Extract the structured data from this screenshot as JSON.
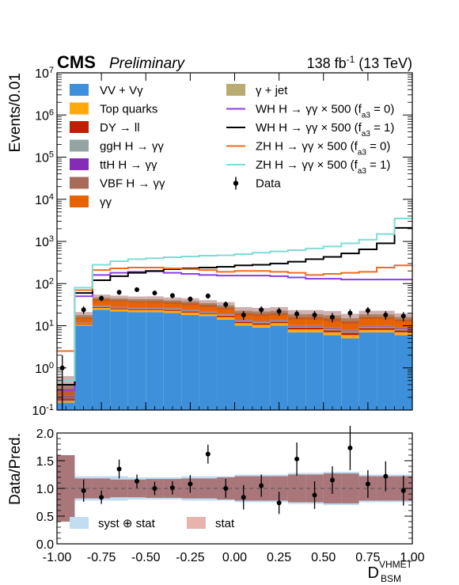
{
  "chart_data": {
    "type": "histogram",
    "header": {
      "experiment": "CMS",
      "status": "Preliminary",
      "lumi_base": "138 fb",
      "lumi_exp": "-1",
      "energy": "(13 TeV)"
    },
    "x_bins": [
      -1.0,
      -0.9,
      -0.8,
      -0.7,
      -0.6,
      -0.5,
      -0.4,
      -0.3,
      -0.2,
      -0.1,
      0.0,
      0.1,
      0.2,
      0.3,
      0.4,
      0.5,
      0.6,
      0.7,
      0.8,
      0.9,
      1.0
    ],
    "xlim": [
      -1.0,
      1.0
    ],
    "xticks": [
      "-1.00",
      "-0.75",
      "-0.50",
      "-0.25",
      "0.00",
      "0.25",
      "0.50",
      "0.75",
      "1.00"
    ],
    "xticks_values": [
      -1.0,
      -0.75,
      -0.5,
      -0.25,
      0.0,
      0.25,
      0.5,
      0.75,
      1.0
    ],
    "xlabel": {
      "base": "D",
      "sup": "VHMET",
      "sub": "BSM"
    },
    "top": {
      "ylabel": "Events/0.01",
      "yscale": "log",
      "ylim": [
        0.1,
        10000000
      ],
      "yticks": [
        {
          "value": 0.1,
          "base": "10",
          "exp": "-1"
        },
        {
          "value": 1,
          "base": "10",
          "exp": "0"
        },
        {
          "value": 10,
          "base": "10",
          "exp": "1"
        },
        {
          "value": 100,
          "base": "10",
          "exp": "2"
        },
        {
          "value": 1000,
          "base": "10",
          "exp": "3"
        },
        {
          "value": 10000,
          "base": "10",
          "exp": "4"
        },
        {
          "value": 100000,
          "base": "10",
          "exp": "5"
        },
        {
          "value": 1000000,
          "base": "10",
          "exp": "6"
        },
        {
          "value": 10000000,
          "base": "10",
          "exp": "7"
        }
      ],
      "stack": [
        {
          "name": "VV + Vγ",
          "color": "#3f90da",
          "values": [
            0.15,
            10,
            24,
            22,
            21,
            21,
            20,
            18,
            17,
            14,
            10,
            9,
            10,
            7,
            7,
            6,
            5,
            7,
            7,
            6
          ]
        },
        {
          "name": "Top quarks",
          "color": "#ffa90e",
          "values": [
            0.02,
            0.8,
            2.5,
            2.5,
            2.5,
            2.5,
            2.5,
            2.5,
            2.0,
            2.0,
            1.5,
            1.5,
            1.5,
            1.2,
            1.2,
            1.0,
            1.0,
            1.0,
            1.0,
            1.0
          ]
        },
        {
          "name": "DY → ll",
          "color": "#bd1f01",
          "values": [
            0.02,
            0.5,
            1.5,
            1.5,
            1.5,
            1.5,
            1.5,
            1.5,
            1.2,
            1.2,
            1.0,
            1.0,
            1.0,
            0.8,
            0.8,
            0.8,
            0.8,
            0.8,
            0.8,
            0.8
          ]
        },
        {
          "name": "ggH H → γγ",
          "color": "#94a4a2",
          "values": [
            0.01,
            0.3,
            1.2,
            1.2,
            1.2,
            1.2,
            1.2,
            1.2,
            1.0,
            1.0,
            0.8,
            0.8,
            0.8,
            0.6,
            0.6,
            0.6,
            0.6,
            0.6,
            0.6,
            0.6
          ]
        },
        {
          "name": "ttH H → γγ",
          "color": "#832db6",
          "values": [
            0.01,
            0.1,
            0.4,
            0.4,
            0.4,
            0.4,
            0.4,
            0.4,
            0.3,
            0.3,
            0.3,
            0.3,
            0.3,
            0.2,
            0.2,
            0.2,
            0.2,
            0.2,
            0.2,
            0.2
          ]
        },
        {
          "name": "VBF H → γγ",
          "color": "#a96b59",
          "values": [
            0.01,
            0.2,
            1.0,
            1.0,
            1.0,
            1.0,
            1.0,
            1.0,
            0.8,
            0.8,
            0.6,
            0.6,
            0.6,
            0.5,
            0.5,
            0.5,
            0.5,
            0.5,
            0.5,
            0.5
          ]
        },
        {
          "name": "γγ",
          "color": "#e76300",
          "values": [
            0.1,
            4.0,
            12,
            12,
            11,
            11,
            10,
            10,
            9,
            8,
            6,
            6,
            6,
            6,
            6,
            6,
            5,
            6,
            6,
            5
          ]
        },
        {
          "name": "γ + jet",
          "color": "#b9ac70",
          "values": [
            0.08,
            2.0,
            4.0,
            4.0,
            4.0,
            4.0,
            3.5,
            3.5,
            3.0,
            3.0,
            2.5,
            2.5,
            2.5,
            2.5,
            2.5,
            2.5,
            2.0,
            2.5,
            2.5,
            2.0
          ]
        }
      ],
      "signals": [
        {
          "name": "WH H → γγ × 500 (f",
          "name_sub": "a3",
          "name_tail": " = 0)",
          "color": "#8a3de6",
          "values": [
            0.3,
            50,
            160,
            180,
            190,
            195,
            180,
            170,
            160,
            155,
            155,
            155,
            150,
            140,
            130,
            130,
            125,
            125,
            125,
            125
          ]
        },
        {
          "name": "WH H → γγ × 500 (f",
          "name_sub": "a3",
          "name_tail": " = 1)",
          "color": "#000000",
          "values": [
            0.4,
            60,
            120,
            150,
            180,
            200,
            220,
            230,
            240,
            250,
            270,
            280,
            300,
            330,
            380,
            430,
            520,
            650,
            900,
            2100
          ]
        },
        {
          "name": "ZH H → γγ × 500 (f",
          "name_sub": "a3",
          "name_tail": " = 0)",
          "color": "#f26b1d",
          "values": [
            2.5,
            70,
            210,
            230,
            240,
            240,
            230,
            220,
            210,
            190,
            200,
            200,
            190,
            180,
            160,
            170,
            180,
            190,
            240,
            270
          ]
        },
        {
          "name": "ZH H → γγ × 500 (f",
          "name_sub": "a3",
          "name_tail": " = 1)",
          "color": "#7fdcd4",
          "values": [
            0.5,
            80,
            280,
            340,
            380,
            400,
            420,
            440,
            460,
            470,
            500,
            540,
            580,
            620,
            680,
            760,
            900,
            1100,
            1500,
            3500
          ]
        }
      ],
      "data": {
        "name": "Data",
        "x": [
          -0.97,
          -0.85,
          -0.75,
          -0.65,
          -0.55,
          -0.45,
          -0.35,
          -0.25,
          -0.15,
          -0.05,
          0.05,
          0.15,
          0.25,
          0.35,
          0.45,
          0.55,
          0.65,
          0.75,
          0.85,
          0.95
        ],
        "values": [
          1.0,
          24,
          45,
          62,
          72,
          60,
          52,
          43,
          51,
          32,
          18,
          24,
          22,
          19,
          18,
          16,
          20,
          23,
          18,
          17
        ]
      }
    },
    "bottom": {
      "ylabel": "Data/Pred.",
      "ylim": [
        0.0,
        2.0
      ],
      "yticks": [
        "0.0",
        "0.5",
        "1.0",
        "1.5",
        "2.0"
      ],
      "yticks_values": [
        0.0,
        0.5,
        1.0,
        1.5,
        2.0
      ],
      "syst_stat_half_width": [
        0.6,
        0.22,
        0.22,
        0.22,
        0.2,
        0.2,
        0.2,
        0.22,
        0.22,
        0.22,
        0.25,
        0.25,
        0.25,
        0.28,
        0.28,
        0.3,
        0.3,
        0.25,
        0.25,
        0.25
      ],
      "stat_half_width": [
        0.6,
        0.18,
        0.18,
        0.16,
        0.16,
        0.17,
        0.17,
        0.18,
        0.18,
        0.2,
        0.22,
        0.22,
        0.22,
        0.25,
        0.25,
        0.27,
        0.27,
        0.22,
        0.22,
        0.22
      ],
      "ratio_x": [
        -0.85,
        -0.75,
        -0.65,
        -0.55,
        -0.45,
        -0.35,
        -0.25,
        -0.15,
        -0.05,
        0.05,
        0.15,
        0.25,
        0.35,
        0.45,
        0.55,
        0.65,
        0.75,
        0.85,
        0.95
      ],
      "ratio_values": [
        0.96,
        0.84,
        1.35,
        1.13,
        1.0,
        1.01,
        1.08,
        1.62,
        1.0,
        0.84,
        1.05,
        0.74,
        1.53,
        0.88,
        1.15,
        1.73,
        1.08,
        1.22,
        0.96
      ],
      "ratio_errors": [
        0.2,
        0.12,
        0.17,
        0.12,
        0.12,
        0.12,
        0.16,
        0.17,
        0.17,
        0.22,
        0.2,
        0.2,
        0.3,
        0.25,
        0.25,
        0.4,
        0.25,
        0.27,
        0.27
      ],
      "legend": [
        {
          "label": "syst ⊕ stat",
          "color": "#c2dcf2"
        },
        {
          "label": "stat",
          "color": "#e8b3ad"
        }
      ]
    }
  }
}
